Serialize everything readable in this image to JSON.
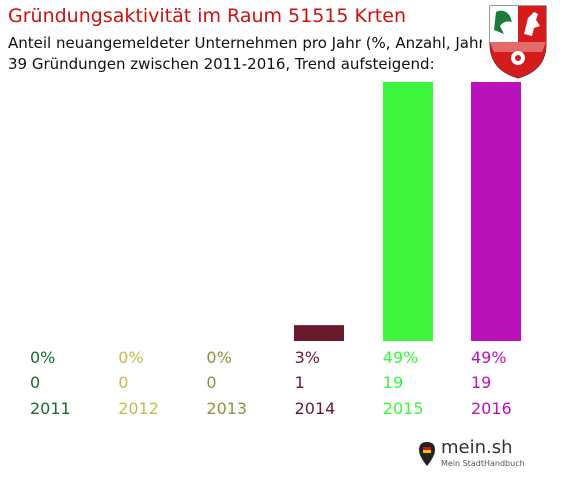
{
  "header": {
    "title": "Gründungsaktivität im Raum 51515 Krten",
    "subtitle_line1": "Anteil neuangemeldeter Unternehmen pro Jahr (%, Anzahl, Jahr)",
    "subtitle_line2": "39 Gründungen zwischen 2011-2016, Trend aufsteigend:"
  },
  "logo": {
    "name": "mein.sh",
    "tagline": "Mein StadtHandbuch"
  },
  "chart_data": {
    "type": "bar",
    "categories": [
      "2011",
      "2012",
      "2013",
      "2014",
      "2015",
      "2016"
    ],
    "values": [
      0,
      0,
      0,
      3,
      49,
      49
    ],
    "counts": [
      0,
      0,
      0,
      1,
      19,
      19
    ],
    "percent_labels": [
      "0%",
      "0%",
      "0%",
      "3%",
      "49%",
      "49%"
    ],
    "count_labels": [
      "0",
      "0",
      "0",
      "1",
      "19",
      "19"
    ],
    "colors": [
      "#1a6b2a",
      "#c9b84a",
      "#8f9340",
      "#6b1a2e",
      "#3cf53c",
      "#bb11bb"
    ],
    "ylim": [
      0,
      49
    ],
    "grid": false,
    "legend": "none"
  }
}
